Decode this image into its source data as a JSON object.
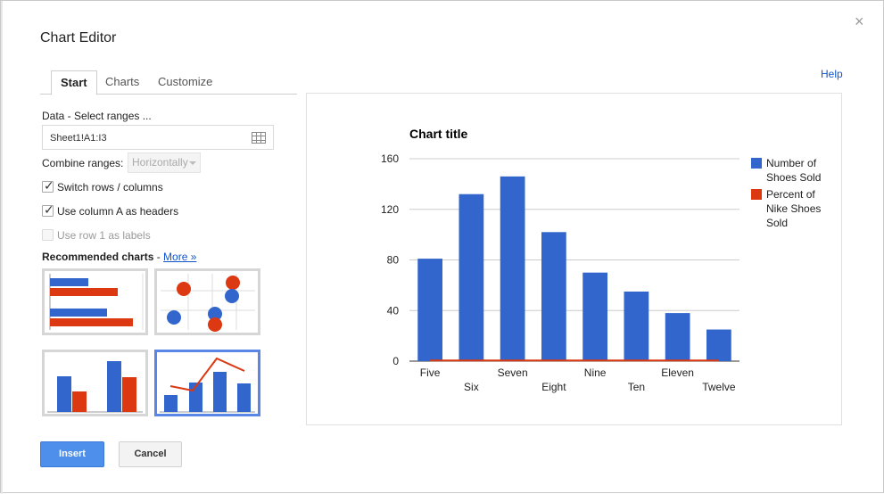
{
  "dialog": {
    "title": "Chart Editor",
    "help_label": "Help",
    "close_glyph": "×"
  },
  "tabs": [
    {
      "label": "Start",
      "active": true
    },
    {
      "label": "Charts",
      "active": false
    },
    {
      "label": "Customize",
      "active": false
    }
  ],
  "data_section": {
    "label": "Data - Select ranges ...",
    "range_value": "Sheet1!A1:I3"
  },
  "combine": {
    "label": "Combine ranges:",
    "value": "Horizontally"
  },
  "checks": [
    {
      "label": "Switch rows / columns",
      "checked": true,
      "disabled": false
    },
    {
      "label": "Use column A as headers",
      "checked": true,
      "disabled": false
    },
    {
      "label": "Use row 1 as labels",
      "checked": false,
      "disabled": true
    }
  ],
  "recommended": {
    "label": "Recommended charts",
    "separator": " - ",
    "more_label": "More »"
  },
  "colors": {
    "blue": "#3366cc",
    "red": "#dc3912",
    "accent": "#4d8fea"
  },
  "icons": {
    "grid": "grid-icon",
    "close": "close-icon"
  },
  "buttons": {
    "insert": "Insert",
    "cancel": "Cancel"
  },
  "chart_data": {
    "type": "bar",
    "title": "Chart title",
    "categories": [
      "Five",
      "Six",
      "Seven",
      "Eight",
      "Nine",
      "Ten",
      "Eleven",
      "Twelve"
    ],
    "series": [
      {
        "name": "Number of Shoes Sold",
        "type": "bar",
        "color": "#3366cc",
        "values": [
          81,
          132,
          146,
          102,
          70,
          55,
          38,
          25
        ]
      },
      {
        "name": "Percent of Nike Shoes Sold",
        "type": "line",
        "color": "#dc3912",
        "values": [
          0.5,
          0.5,
          0.5,
          0.5,
          0.5,
          0.5,
          0.5,
          0.5
        ]
      }
    ],
    "yticks": [
      0,
      40,
      80,
      120,
      160
    ],
    "ylim": [
      0,
      160
    ],
    "grid": true,
    "legend": "right",
    "legend_lines": [
      [
        "Number of",
        "Shoes Sold"
      ],
      [
        "Percent of",
        "Nike Shoes",
        "Sold"
      ]
    ]
  }
}
